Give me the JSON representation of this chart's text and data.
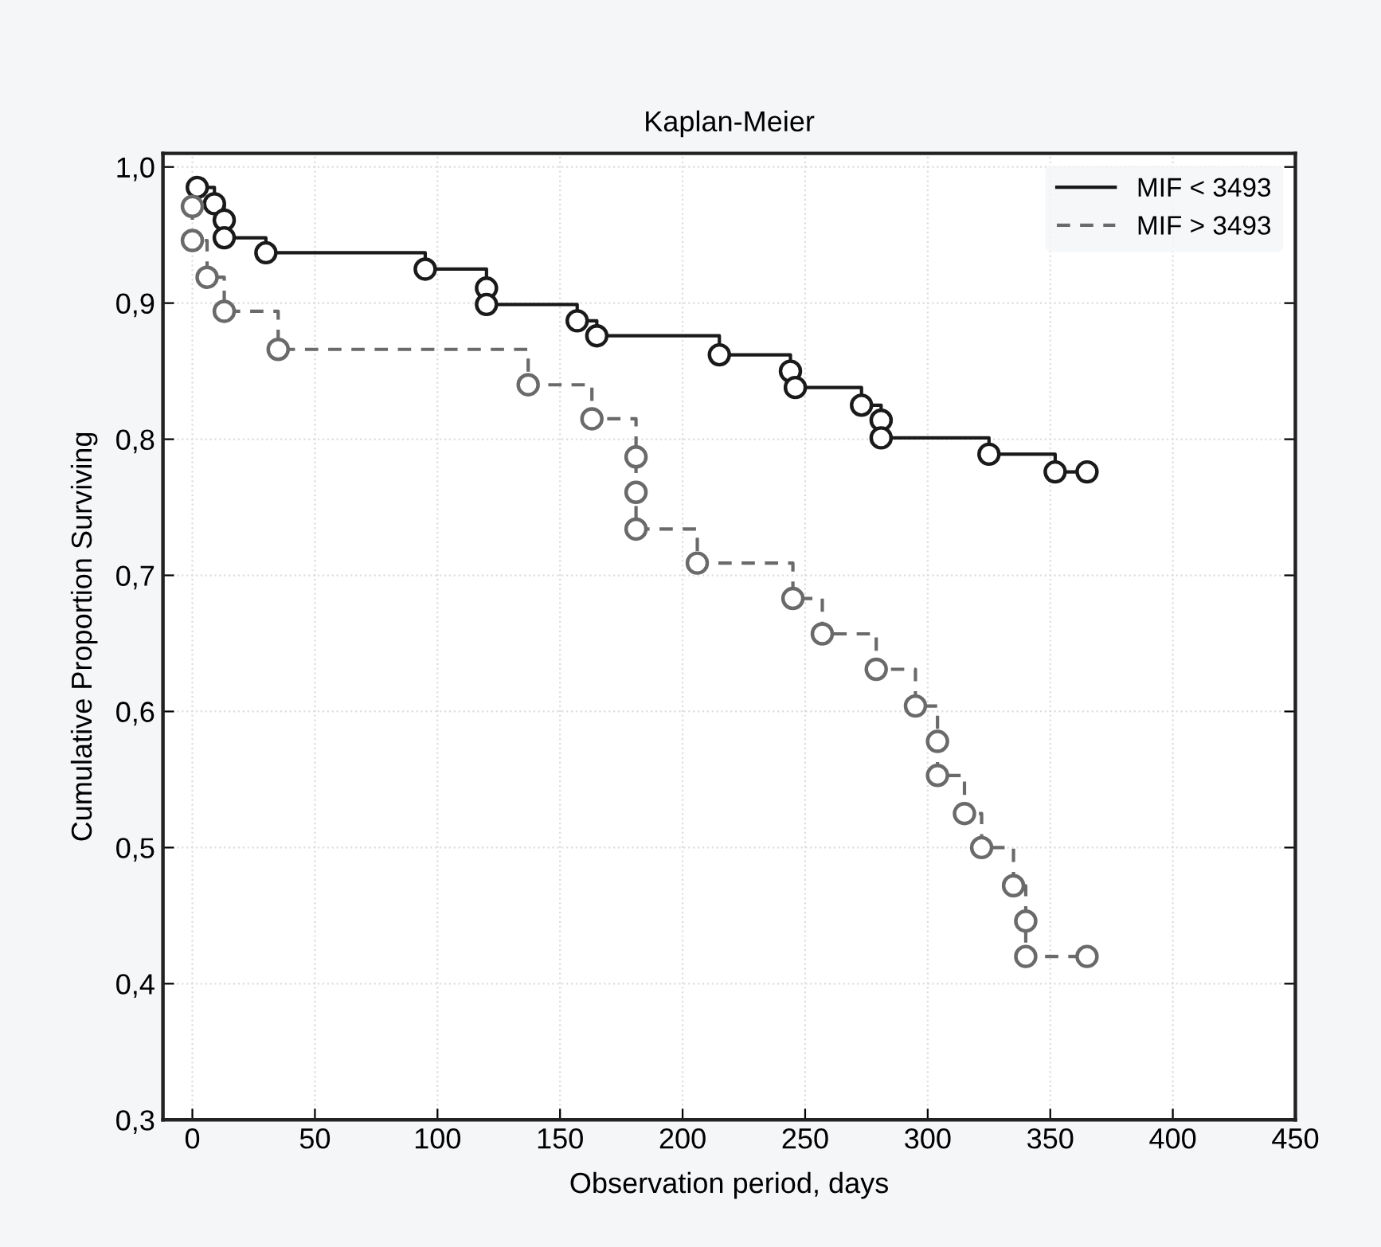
{
  "chart_data": {
    "type": "step",
    "title": "Kaplan-Meier",
    "xlabel": "Observation period, days",
    "ylabel": "Cumulative Proportion Surviving",
    "series": [
      {
        "name": "MIF < 3493",
        "color": "#1a1a1a",
        "line_style": "solid",
        "marker": "circle",
        "x": [
          2,
          9,
          13,
          13,
          30,
          95,
          120,
          120,
          157,
          165,
          215,
          244,
          246,
          273,
          281,
          281,
          325,
          352,
          365
        ],
        "values": [
          0.985,
          0.973,
          0.961,
          0.948,
          0.937,
          0.925,
          0.911,
          0.899,
          0.887,
          0.876,
          0.862,
          0.85,
          0.838,
          0.825,
          0.814,
          0.801,
          0.789,
          0.776,
          0.776
        ]
      },
      {
        "name": "MIF > 3493",
        "color": "#6a6a6a",
        "line_style": "dashed",
        "marker": "circle",
        "x": [
          0,
          0,
          6,
          13,
          35,
          137,
          163,
          181,
          181,
          181,
          206,
          245,
          257,
          279,
          295,
          304,
          304,
          315,
          322,
          335,
          340,
          340,
          365
        ],
        "values": [
          0.971,
          0.946,
          0.919,
          0.894,
          0.866,
          0.84,
          0.815,
          0.787,
          0.761,
          0.734,
          0.709,
          0.683,
          0.657,
          0.631,
          0.604,
          0.578,
          0.553,
          0.525,
          0.5,
          0.472,
          0.446,
          0.42,
          0.42
        ]
      }
    ],
    "xlim": [
      -12,
      450
    ],
    "ylim": [
      0.3,
      1.01
    ],
    "xticks": [
      0,
      50,
      100,
      150,
      200,
      250,
      300,
      350,
      400,
      450
    ],
    "yticks": [
      {
        "value": 0.3,
        "label": "0,3"
      },
      {
        "value": 0.4,
        "label": "0,4"
      },
      {
        "value": 0.5,
        "label": "0,5"
      },
      {
        "value": 0.6,
        "label": "0,6"
      },
      {
        "value": 0.7,
        "label": "0,7"
      },
      {
        "value": 0.8,
        "label": "0,8"
      },
      {
        "value": 0.9,
        "label": "0,9"
      },
      {
        "value": 1.0,
        "label": "1,0"
      }
    ],
    "grid": true,
    "legend": "top right"
  }
}
